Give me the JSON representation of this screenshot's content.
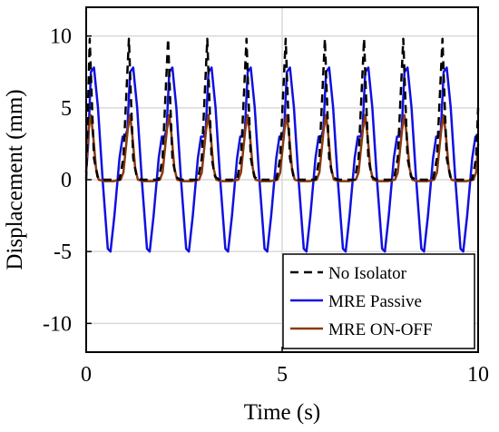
{
  "chart_data": {
    "type": "line",
    "title": "",
    "xlabel": "Time (s)",
    "ylabel": "Displacement (mm)",
    "xlim": [
      0,
      10
    ],
    "ylim": [
      -12,
      12
    ],
    "x_ticks": [
      0,
      5,
      10
    ],
    "y_ticks": [
      10,
      5,
      0,
      -5,
      -10
    ],
    "grid": true,
    "legend_position": "bottom-right",
    "series": [
      {
        "name": "No Isolator",
        "color": "#000000",
        "dash": "dashed",
        "x": [
          0.0,
          0.09,
          0.15,
          0.2,
          0.29,
          0.4,
          0.55,
          0.7,
          0.85,
          0.95,
          1.09,
          1.15,
          1.2,
          1.29,
          1.4,
          1.55,
          1.7,
          1.85,
          1.95,
          2.09,
          2.15,
          2.2,
          2.29,
          2.4,
          2.55,
          2.7,
          2.85,
          2.95,
          3.09,
          3.15,
          3.2,
          3.29,
          3.4,
          3.55,
          3.7,
          3.85,
          3.95,
          4.09,
          4.15,
          4.2,
          4.29,
          4.4,
          4.55,
          4.7,
          4.85,
          4.95,
          5.09,
          5.15,
          5.2,
          5.29,
          5.4,
          5.55,
          5.7,
          5.85,
          5.95,
          6.09,
          6.15,
          6.2,
          6.29,
          6.4,
          6.55,
          6.7,
          6.85,
          6.95,
          7.09,
          7.15,
          7.2,
          7.29,
          7.4,
          7.55,
          7.7,
          7.85,
          7.95,
          8.09,
          8.15,
          8.2,
          8.29,
          8.4,
          8.55,
          8.7,
          8.85,
          8.95,
          9.09,
          9.15,
          9.2,
          9.29,
          9.4,
          9.55,
          9.7,
          9.85,
          9.95,
          10.0
        ],
        "y": [
          0,
          9.8,
          5.0,
          1.5,
          0.2,
          0,
          0,
          0,
          0,
          1.5,
          9.8,
          5.0,
          1.5,
          0.2,
          0,
          0,
          0,
          0,
          1.5,
          9.8,
          5.0,
          1.5,
          0.2,
          0,
          0,
          0,
          0,
          1.5,
          9.8,
          5.0,
          1.5,
          0.2,
          0,
          0,
          0,
          0,
          1.5,
          9.8,
          5.0,
          1.5,
          0.2,
          0,
          0,
          0,
          0,
          1.5,
          9.8,
          5.0,
          1.5,
          0.2,
          0,
          0,
          0,
          0,
          1.5,
          9.8,
          5.0,
          1.5,
          0.2,
          0,
          0,
          0,
          0,
          1.5,
          9.8,
          5.0,
          1.5,
          0.2,
          0,
          0,
          0,
          0,
          1.5,
          9.8,
          5.0,
          1.5,
          0.2,
          0,
          0,
          0,
          0,
          1.5,
          9.8,
          5.0,
          1.5,
          0.2,
          0,
          0,
          0,
          0,
          1.5,
          5.0
        ]
      },
      {
        "name": "MRE Passive",
        "color": "#1010e0",
        "dash": "solid",
        "x": [
          0.0,
          0.05,
          0.12,
          0.2,
          0.3,
          0.42,
          0.55,
          0.62,
          0.72,
          0.85,
          0.93,
          1.0,
          1.05,
          1.12,
          1.2,
          1.3,
          1.42,
          1.55,
          1.62,
          1.72,
          1.85,
          1.93,
          2.0,
          2.05,
          2.12,
          2.2,
          2.3,
          2.42,
          2.55,
          2.62,
          2.72,
          2.85,
          2.93,
          3.0,
          3.05,
          3.12,
          3.2,
          3.3,
          3.42,
          3.55,
          3.62,
          3.72,
          3.85,
          3.93,
          4.0,
          4.05,
          4.12,
          4.2,
          4.3,
          4.42,
          4.55,
          4.62,
          4.72,
          4.85,
          4.93,
          5.0,
          5.05,
          5.12,
          5.2,
          5.3,
          5.42,
          5.55,
          5.62,
          5.72,
          5.85,
          5.93,
          6.0,
          6.05,
          6.12,
          6.2,
          6.3,
          6.42,
          6.55,
          6.62,
          6.72,
          6.85,
          6.93,
          7.0,
          7.05,
          7.12,
          7.2,
          7.3,
          7.42,
          7.55,
          7.62,
          7.72,
          7.85,
          7.93,
          8.0,
          8.05,
          8.12,
          8.2,
          8.3,
          8.42,
          8.55,
          8.62,
          8.72,
          8.85,
          8.93,
          9.0,
          9.05,
          9.12,
          9.2,
          9.3,
          9.42,
          9.55,
          9.62,
          9.72,
          9.85,
          9.93,
          10.0
        ],
        "y": [
          0.5,
          2.5,
          7.5,
          7.8,
          5.0,
          0.0,
          -4.8,
          -5.0,
          -2.5,
          1.5,
          3.0,
          3.0,
          3.5,
          7.5,
          7.8,
          5.0,
          0.0,
          -4.8,
          -5.0,
          -2.5,
          1.5,
          3.0,
          3.0,
          3.5,
          7.5,
          7.8,
          5.0,
          0.0,
          -4.8,
          -5.0,
          -2.5,
          1.5,
          3.0,
          3.0,
          3.5,
          7.5,
          7.8,
          5.0,
          0.0,
          -4.8,
          -5.0,
          -2.5,
          1.5,
          3.0,
          3.0,
          3.5,
          7.5,
          7.8,
          5.0,
          0.0,
          -4.8,
          -5.0,
          -2.5,
          1.5,
          3.0,
          3.0,
          3.5,
          7.5,
          7.8,
          5.0,
          0.0,
          -4.8,
          -5.0,
          -2.5,
          1.5,
          3.0,
          3.0,
          3.5,
          7.5,
          7.8,
          5.0,
          0.0,
          -4.8,
          -5.0,
          -2.5,
          1.5,
          3.0,
          3.0,
          3.5,
          7.5,
          7.8,
          5.0,
          0.0,
          -4.8,
          -5.0,
          -2.5,
          1.5,
          3.0,
          3.0,
          3.5,
          7.5,
          7.8,
          5.0,
          0.0,
          -4.8,
          -5.0,
          -2.5,
          1.5,
          3.0,
          3.0,
          3.5,
          7.5,
          7.8,
          5.0,
          0.0,
          -4.8,
          -5.0,
          -2.5,
          1.5,
          3.0,
          3.0
        ]
      },
      {
        "name": "MRE ON-OFF",
        "color": "#8b3a0f",
        "dash": "solid",
        "x": [
          0.0,
          0.06,
          0.12,
          0.18,
          0.25,
          0.32,
          0.45,
          0.7,
          0.88,
          0.95,
          1.06,
          1.12,
          1.18,
          1.25,
          1.32,
          1.45,
          1.7,
          1.88,
          1.95,
          2.06,
          2.12,
          2.18,
          2.25,
          2.32,
          2.45,
          2.7,
          2.88,
          2.95,
          3.06,
          3.12,
          3.18,
          3.25,
          3.32,
          3.45,
          3.7,
          3.88,
          3.95,
          4.06,
          4.12,
          4.18,
          4.25,
          4.32,
          4.45,
          4.7,
          4.88,
          4.95,
          5.06,
          5.12,
          5.18,
          5.25,
          5.32,
          5.45,
          5.7,
          5.88,
          5.95,
          6.06,
          6.12,
          6.18,
          6.25,
          6.32,
          6.45,
          6.7,
          6.88,
          6.95,
          7.06,
          7.12,
          7.18,
          7.25,
          7.32,
          7.45,
          7.7,
          7.88,
          7.95,
          8.06,
          8.12,
          8.18,
          8.25,
          8.32,
          8.45,
          8.7,
          8.88,
          8.95,
          9.06,
          9.12,
          9.18,
          9.25,
          9.32,
          9.45,
          9.7,
          9.88,
          9.95,
          10.0
        ],
        "y": [
          0.5,
          3.5,
          4.5,
          3.0,
          0.8,
          0.0,
          -0.1,
          -0.1,
          0.0,
          0.5,
          3.5,
          4.5,
          3.0,
          0.8,
          0.0,
          -0.1,
          -0.1,
          0.0,
          0.5,
          3.5,
          4.5,
          3.0,
          0.8,
          0.0,
          -0.1,
          -0.1,
          0.0,
          0.5,
          3.5,
          4.5,
          3.0,
          0.8,
          0.0,
          -0.1,
          -0.1,
          0.0,
          0.5,
          3.5,
          4.5,
          3.0,
          0.8,
          0.0,
          -0.1,
          -0.1,
          0.0,
          0.5,
          3.5,
          4.5,
          3.0,
          0.8,
          0.0,
          -0.1,
          -0.1,
          0.0,
          0.5,
          3.5,
          4.5,
          3.0,
          0.8,
          0.0,
          -0.1,
          -0.1,
          0.0,
          0.5,
          3.5,
          4.5,
          3.0,
          0.8,
          0.0,
          -0.1,
          -0.1,
          0.0,
          0.5,
          3.5,
          4.5,
          3.0,
          0.8,
          0.0,
          -0.1,
          -0.1,
          0.0,
          0.5,
          3.5,
          4.5,
          3.0,
          0.8,
          0.0,
          -0.1,
          -0.1,
          0.0,
          0.5,
          2.5
        ]
      }
    ]
  }
}
